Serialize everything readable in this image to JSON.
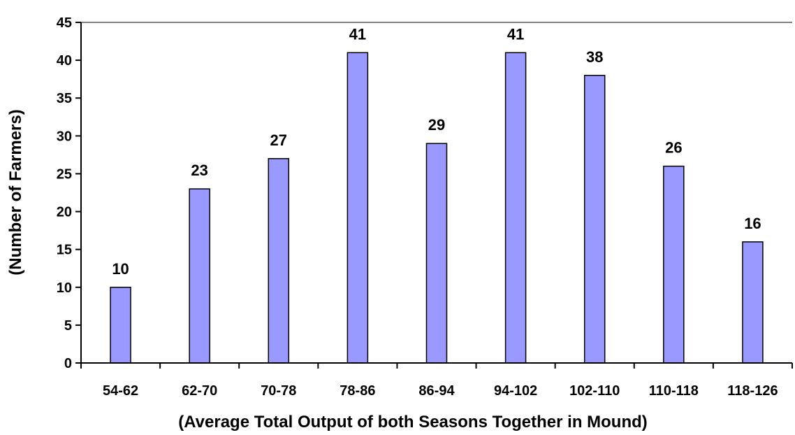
{
  "chart_data": {
    "type": "bar",
    "title": "",
    "xlabel": "(Average Total Output of both Seasons Together in Mound)",
    "ylabel": "(Number of Farmers)",
    "categories": [
      "54-62",
      "62-70",
      "70-78",
      "78-86",
      "86-94",
      "94-102",
      "102-110",
      "110-118",
      "118-126"
    ],
    "values": [
      10,
      23,
      27,
      41,
      29,
      41,
      38,
      26,
      16
    ],
    "ylim": [
      0,
      45
    ],
    "yticks": [
      0,
      5,
      10,
      15,
      20,
      25,
      30,
      35,
      40,
      45
    ],
    "grid": false,
    "legend": "none",
    "bar_color": "#9999ff",
    "bar_edge_color": "#000000",
    "data_labels": true
  }
}
